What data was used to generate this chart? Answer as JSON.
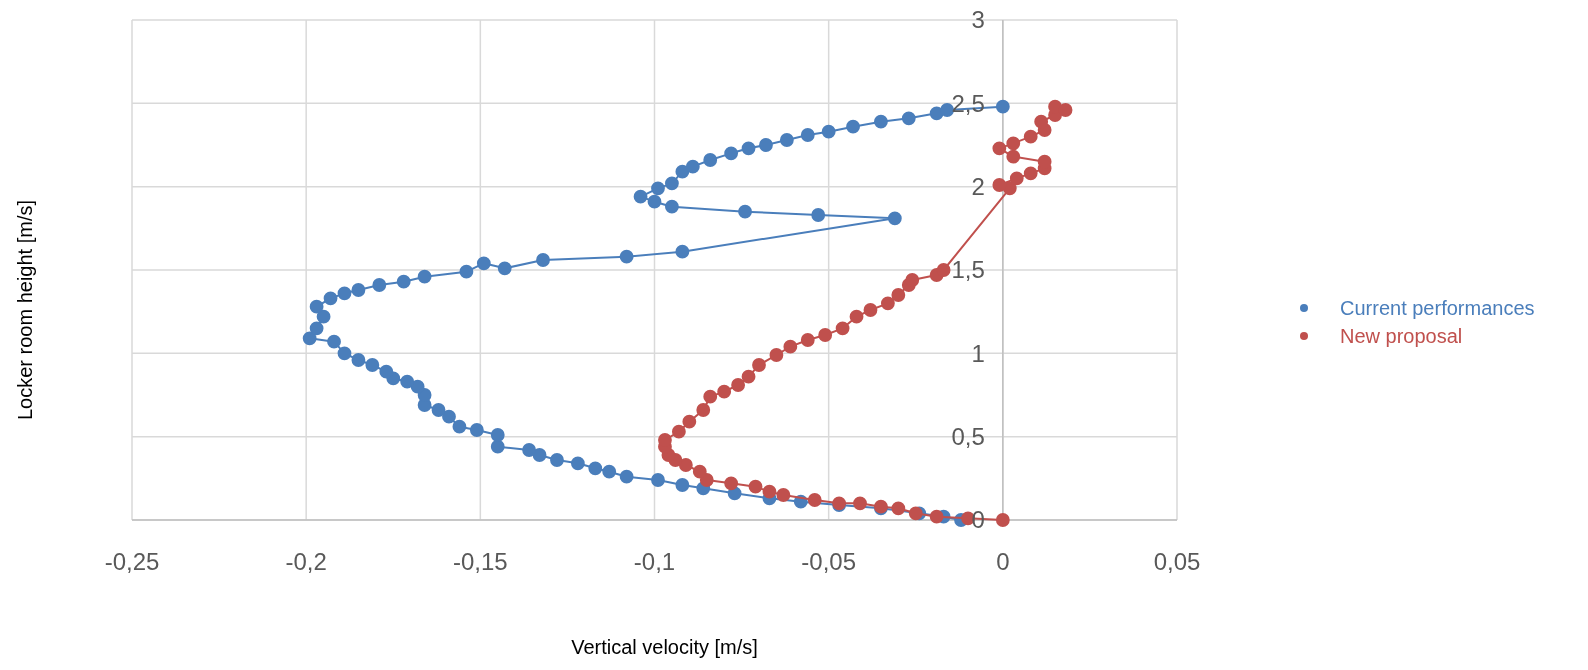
{
  "chart_data": {
    "type": "line",
    "xlabel": "Vertical velocity [m/s]",
    "ylabel": "Locker room height [m/s]",
    "xlim": [
      -0.25,
      0.05
    ],
    "xticks": [
      {
        "value": -0.25,
        "label": "-0,25"
      },
      {
        "value": -0.2,
        "label": "-0,2"
      },
      {
        "value": -0.15,
        "label": "-0,15"
      },
      {
        "value": -0.1,
        "label": "-0,1"
      },
      {
        "value": -0.05,
        "label": "-0,05"
      },
      0,
      {
        "value": 0.05,
        "label": "0,05"
      }
    ],
    "ylim": [
      0,
      3
    ],
    "yticks": [
      0,
      {
        "value": 0.5,
        "label": "0,5"
      },
      1,
      {
        "value": 1.5,
        "label": "1,5"
      },
      2,
      {
        "value": 2.5,
        "label": "2,5"
      },
      3
    ],
    "grid": true,
    "legend": "right",
    "marker": "circle",
    "line_style": "solid",
    "series": [
      {
        "name": "Current performances",
        "color": "#4a7ebb",
        "x": [
          -0.012,
          -0.017,
          -0.024,
          -0.035,
          -0.047,
          -0.058,
          -0.067,
          -0.077,
          -0.086,
          -0.092,
          -0.099,
          -0.108,
          -0.113,
          -0.117,
          -0.122,
          -0.128,
          -0.133,
          -0.136,
          -0.145,
          -0.145,
          -0.151,
          -0.156,
          -0.159,
          -0.162,
          -0.166,
          -0.166,
          -0.168,
          -0.171,
          -0.175,
          -0.177,
          -0.181,
          -0.185,
          -0.189,
          -0.192,
          -0.199,
          -0.197,
          -0.195,
          -0.197,
          -0.193,
          -0.189,
          -0.185,
          -0.179,
          -0.172,
          -0.166,
          -0.154,
          -0.149,
          -0.143,
          -0.132,
          -0.108,
          -0.092,
          -0.031,
          -0.053,
          -0.074,
          -0.095,
          -0.1,
          -0.104,
          -0.099,
          -0.095,
          -0.092,
          -0.089,
          -0.084,
          -0.078,
          -0.073,
          -0.068,
          -0.062,
          -0.056,
          -0.05,
          -0.043,
          -0.035,
          -0.027,
          -0.019,
          -0.016,
          0
        ],
        "values": [
          0.0,
          0.02,
          0.04,
          0.07,
          0.09,
          0.11,
          0.13,
          0.16,
          0.19,
          0.21,
          0.24,
          0.26,
          0.29,
          0.31,
          0.34,
          0.36,
          0.39,
          0.42,
          0.44,
          0.51,
          0.54,
          0.56,
          0.62,
          0.66,
          0.69,
          0.75,
          0.8,
          0.83,
          0.85,
          0.89,
          0.93,
          0.96,
          1.0,
          1.07,
          1.09,
          1.15,
          1.22,
          1.28,
          1.33,
          1.36,
          1.38,
          1.41,
          1.43,
          1.46,
          1.49,
          1.54,
          1.51,
          1.56,
          1.58,
          1.61,
          1.81,
          1.83,
          1.85,
          1.88,
          1.91,
          1.94,
          1.99,
          2.02,
          2.09,
          2.12,
          2.16,
          2.2,
          2.23,
          2.25,
          2.28,
          2.31,
          2.33,
          2.36,
          2.39,
          2.41,
          2.44,
          2.46,
          2.48
        ]
      },
      {
        "name": "New proposal",
        "color": "#c0504d",
        "x": [
          0,
          -0.01,
          -0.019,
          -0.025,
          -0.03,
          -0.035,
          -0.041,
          -0.047,
          -0.054,
          -0.063,
          -0.067,
          -0.071,
          -0.078,
          -0.085,
          -0.087,
          -0.091,
          -0.094,
          -0.096,
          -0.097,
          -0.097,
          -0.093,
          -0.09,
          -0.086,
          -0.084,
          -0.08,
          -0.076,
          -0.073,
          -0.07,
          -0.065,
          -0.061,
          -0.056,
          -0.051,
          -0.046,
          -0.042,
          -0.038,
          -0.033,
          -0.03,
          -0.027,
          -0.026,
          -0.019,
          -0.017,
          0.002,
          -0.001,
          0.004,
          0.008,
          0.012,
          0.012,
          0.003,
          -0.001,
          0.003,
          0.008,
          0.012,
          0.011,
          0.015,
          0.015,
          0.018
        ],
        "values": [
          0.0,
          0.01,
          0.02,
          0.04,
          0.07,
          0.08,
          0.1,
          0.1,
          0.12,
          0.15,
          0.17,
          0.2,
          0.22,
          0.24,
          0.29,
          0.33,
          0.36,
          0.39,
          0.44,
          0.48,
          0.53,
          0.59,
          0.66,
          0.74,
          0.77,
          0.81,
          0.86,
          0.93,
          0.99,
          1.04,
          1.08,
          1.11,
          1.15,
          1.22,
          1.26,
          1.3,
          1.35,
          1.41,
          1.44,
          1.47,
          1.5,
          1.99,
          2.01,
          2.05,
          2.08,
          2.11,
          2.15,
          2.18,
          2.23,
          2.26,
          2.3,
          2.34,
          2.39,
          2.43,
          2.48,
          2.46
        ]
      }
    ]
  }
}
